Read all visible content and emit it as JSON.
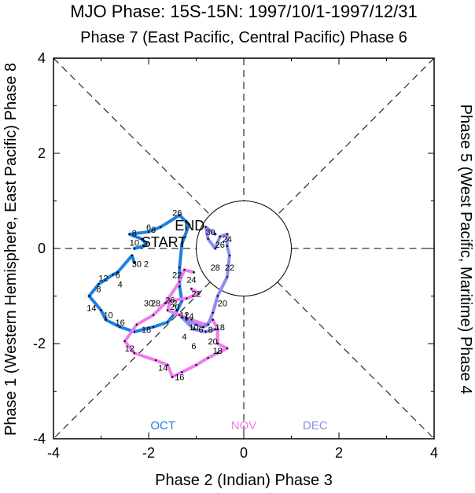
{
  "chart_data": {
    "type": "line",
    "title": "MJO Phase: 15S-15N: 1997/10/1-1997/12/31",
    "top_label": "Phase 7 (East Pacific, Central Pacific) Phase 6",
    "bottom_label": "Phase 2 (Indian) Phase 3",
    "left_label": "Phase 1 (Western Hemisphere, East Pacific) Phase 8",
    "right_label": "Phase 5 (West Pacific, Maritime) Phase 4",
    "xlim": [
      -4,
      4
    ],
    "ylim": [
      -4,
      4
    ],
    "x_ticks": [
      "-4",
      "-2",
      "0",
      "2",
      "4"
    ],
    "y_ticks": [
      "4",
      "2",
      "0",
      "-2",
      "-4"
    ],
    "start_label": "START",
    "end_label": "END",
    "series": [
      {
        "name": "OCT",
        "color": "#1f80e0",
        "points": [
          [
            -2.3,
            0.0
          ],
          [
            -2.1,
            0.05
          ],
          [
            -2.05,
            0.1
          ],
          [
            -2.15,
            0.2
          ],
          [
            -2.4,
            0.3
          ],
          [
            -2.0,
            0.35
          ],
          [
            -1.75,
            0.45
          ],
          [
            -1.35,
            0.7
          ],
          [
            -1.15,
            0.5
          ],
          [
            -1.3,
            0.1
          ],
          [
            -1.35,
            -0.4
          ],
          [
            -1.35,
            -0.8
          ],
          [
            -1.3,
            -1.1
          ],
          [
            -1.4,
            -1.3
          ],
          [
            -1.6,
            -1.55
          ],
          [
            -1.9,
            -1.65
          ],
          [
            -2.3,
            -1.75
          ],
          [
            -2.6,
            -1.65
          ],
          [
            -2.9,
            -1.5
          ],
          [
            -3.0,
            -1.3
          ],
          [
            -3.25,
            -1.0
          ],
          [
            -3.05,
            -0.75
          ],
          [
            -2.75,
            -0.55
          ],
          [
            -2.65,
            -0.5
          ],
          [
            -2.35,
            -0.15
          ],
          [
            -2.3,
            -0.3
          ]
        ],
        "labels": [
          {
            "text": "26",
            "x": -1.4,
            "y": 0.75
          },
          {
            "text": "6",
            "x": -2.0,
            "y": 0.45
          },
          {
            "text": "8",
            "x": -1.9,
            "y": 0.4
          },
          {
            "text": "8",
            "x": -2.3,
            "y": 0.32
          },
          {
            "text": "10",
            "x": -2.3,
            "y": 0.12
          },
          {
            "text": "30",
            "x": -2.25,
            "y": -0.32
          },
          {
            "text": "2",
            "x": -2.05,
            "y": -0.32
          },
          {
            "text": "12",
            "x": -2.95,
            "y": -0.62
          },
          {
            "text": "6",
            "x": -2.65,
            "y": -0.55
          },
          {
            "text": "4",
            "x": -2.6,
            "y": -0.75
          },
          {
            "text": "8",
            "x": -3.05,
            "y": -0.85
          },
          {
            "text": "14",
            "x": -3.2,
            "y": -1.25
          },
          {
            "text": "10",
            "x": -2.85,
            "y": -1.4
          },
          {
            "text": "16",
            "x": -2.6,
            "y": -1.55
          },
          {
            "text": "18",
            "x": -2.05,
            "y": -1.7
          },
          {
            "text": "22",
            "x": -1.4,
            "y": -0.55
          }
        ]
      },
      {
        "name": "NOV",
        "color": "#f07cf0",
        "points": [
          [
            -1.1,
            -0.85
          ],
          [
            -0.95,
            -0.95
          ],
          [
            -1.2,
            -1.05
          ],
          [
            -1.55,
            -1.1
          ],
          [
            -1.6,
            -1.3
          ],
          [
            -1.35,
            -1.4
          ],
          [
            -1.1,
            -1.5
          ],
          [
            -0.8,
            -1.6
          ],
          [
            -0.65,
            -1.5
          ],
          [
            -0.55,
            -1.7
          ],
          [
            -0.55,
            -2.0
          ],
          [
            -0.35,
            -2.1
          ],
          [
            -0.55,
            -2.2
          ],
          [
            -0.75,
            -2.3
          ],
          [
            -1.0,
            -2.45
          ],
          [
            -1.3,
            -2.6
          ],
          [
            -1.5,
            -2.7
          ],
          [
            -1.6,
            -2.45
          ],
          [
            -1.85,
            -2.35
          ],
          [
            -2.3,
            -2.2
          ],
          [
            -2.5,
            -1.95
          ],
          [
            -2.25,
            -1.6
          ],
          [
            -1.9,
            -1.4
          ],
          [
            -1.65,
            -1.15
          ],
          [
            -1.35,
            -0.7
          ],
          [
            -1.25,
            -0.45
          ],
          [
            -1.05,
            -0.5
          ]
        ],
        "labels": [
          {
            "text": "24",
            "x": -1.1,
            "y": -0.65
          },
          {
            "text": "22",
            "x": -1.0,
            "y": -0.95
          },
          {
            "text": "2",
            "x": -1.45,
            "y": -1.15
          },
          {
            "text": "20",
            "x": -1.45,
            "y": -1.22
          },
          {
            "text": "28",
            "x": -1.85,
            "y": -1.15
          },
          {
            "text": "26",
            "x": -1.55,
            "y": -1.08
          },
          {
            "text": "30",
            "x": -2.0,
            "y": -1.15
          },
          {
            "text": "4",
            "x": -1.25,
            "y": -1.85
          },
          {
            "text": "6",
            "x": -1.05,
            "y": -2.05
          },
          {
            "text": "20",
            "x": -0.65,
            "y": -1.95
          },
          {
            "text": "18",
            "x": -0.55,
            "y": -2.15
          },
          {
            "text": "12",
            "x": -2.4,
            "y": -2.1
          },
          {
            "text": "14",
            "x": -1.7,
            "y": -2.5
          },
          {
            "text": "16",
            "x": -1.35,
            "y": -2.7
          }
        ]
      },
      {
        "name": "DEC",
        "color": "#8c8cf0",
        "points": [
          [
            -0.6,
            0.3
          ],
          [
            -0.8,
            0.45
          ],
          [
            -0.75,
            0.2
          ],
          [
            -0.6,
            0.0
          ],
          [
            -0.5,
            0.25
          ],
          [
            -0.35,
            0.3
          ],
          [
            -0.35,
            0.05
          ],
          [
            -0.3,
            -0.15
          ],
          [
            -0.35,
            -0.6
          ],
          [
            -0.55,
            -1.0
          ],
          [
            -0.65,
            -1.35
          ],
          [
            -0.75,
            -1.6
          ],
          [
            -0.85,
            -1.65
          ],
          [
            -1.0,
            -1.6
          ],
          [
            -1.2,
            -1.5
          ],
          [
            -1.3,
            -1.45
          ],
          [
            -1.05,
            -1.7
          ],
          [
            -0.8,
            -1.75
          ],
          [
            -0.6,
            -1.7
          ]
        ],
        "labels": [
          {
            "text": "30",
            "x": -0.7,
            "y": 0.35
          },
          {
            "text": "24",
            "x": -0.35,
            "y": 0.2
          },
          {
            "text": "26",
            "x": -0.5,
            "y": 0.08
          },
          {
            "text": "28",
            "x": -0.6,
            "y": -0.4
          },
          {
            "text": "22",
            "x": -0.3,
            "y": -0.4
          },
          {
            "text": "20",
            "x": -0.45,
            "y": -1.15
          },
          {
            "text": "14",
            "x": -1.15,
            "y": -1.42
          },
          {
            "text": "12",
            "x": -1.25,
            "y": -1.4
          },
          {
            "text": "10",
            "x": -1.05,
            "y": -1.65
          },
          {
            "text": "6",
            "x": -0.9,
            "y": -1.7
          },
          {
            "text": "8",
            "x": -0.7,
            "y": -1.7
          },
          {
            "text": "18",
            "x": -0.5,
            "y": -1.65
          }
        ]
      }
    ]
  }
}
